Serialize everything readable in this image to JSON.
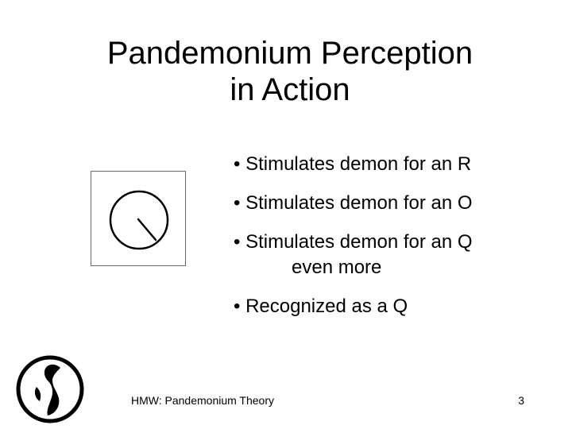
{
  "slide": {
    "title_line1": "Pandemonium Perception",
    "title_line2": "in Action",
    "bullets": [
      {
        "text": "• Stimulates demon for an R"
      },
      {
        "text": "• Stimulates demon for an O"
      },
      {
        "text": "• Stimulates demon for an Q",
        "continuation": "even more"
      },
      {
        "text": "• Recognized as a Q"
      }
    ]
  },
  "footer": {
    "text": "HMW: Pandemonium Theory",
    "page_number": "3"
  },
  "icons": {
    "stimulus": "circle-with-diagonal-tail-icon",
    "logo": "university-seal-logo-icon"
  },
  "colors": {
    "background": "#ffffff",
    "text": "#000000",
    "box_border": "#6a6a6a"
  }
}
